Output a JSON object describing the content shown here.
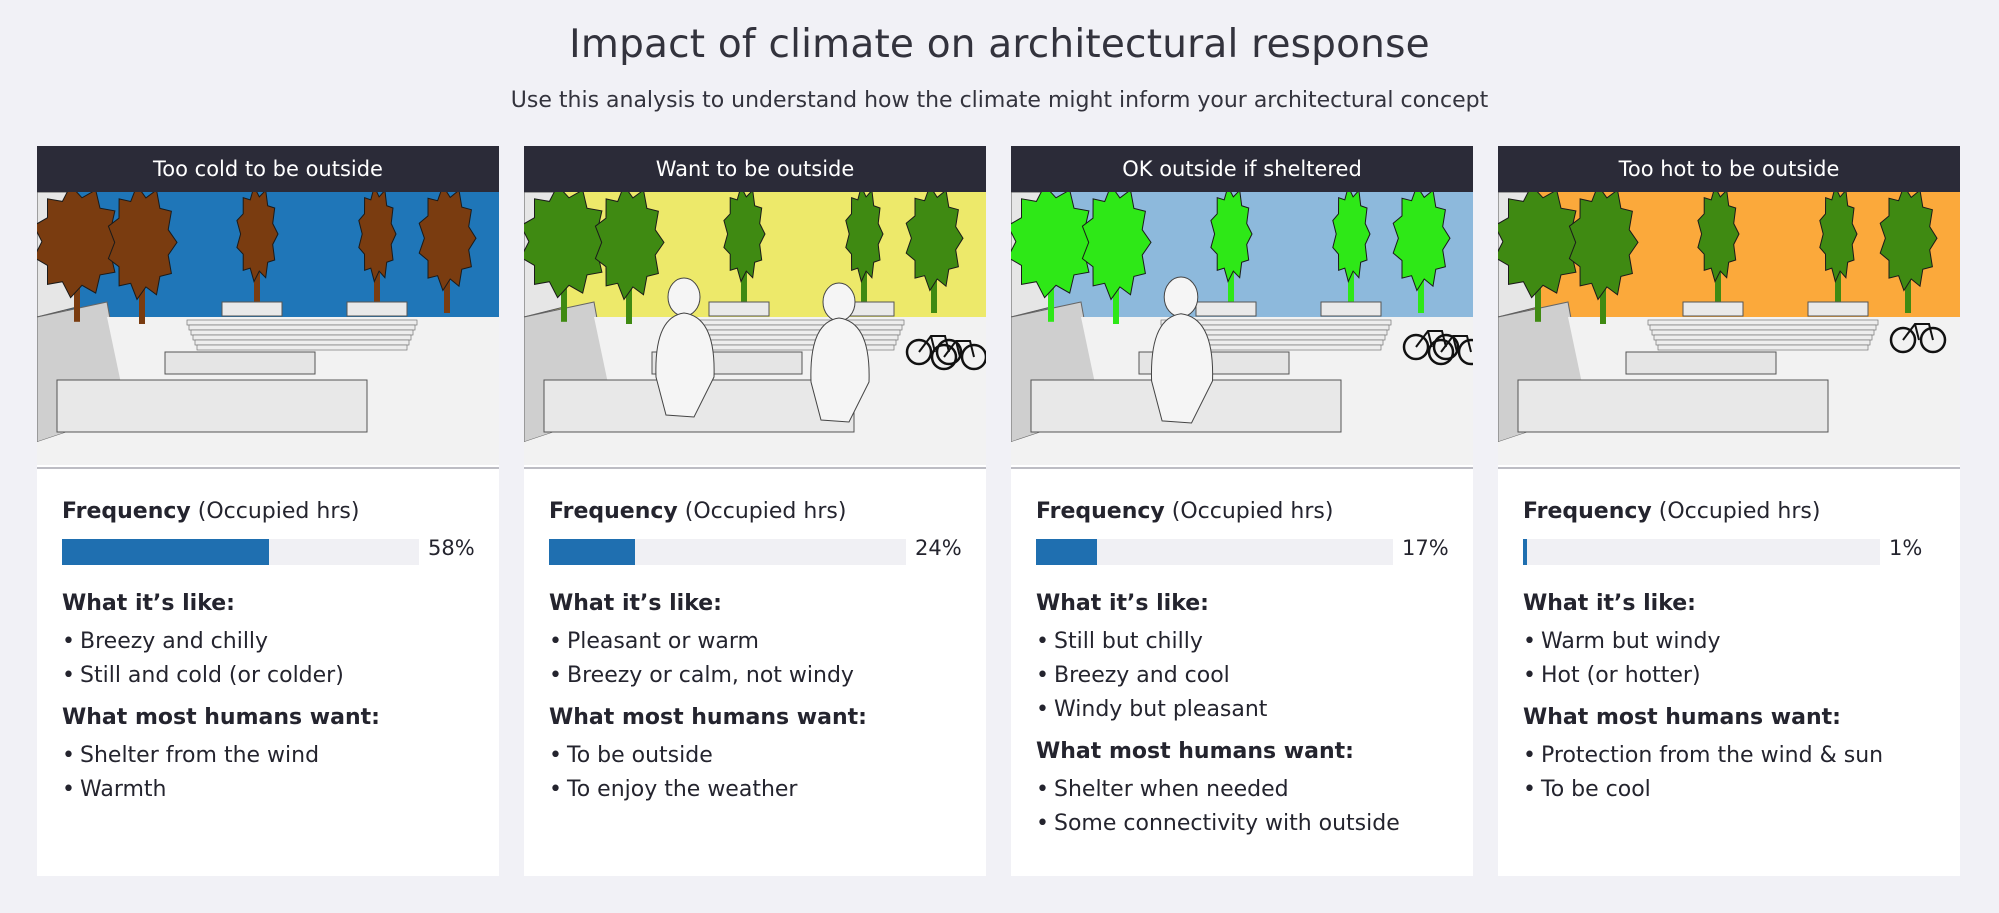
{
  "header": {
    "title": "Impact of climate on architectural response",
    "subtitle": "Use this analysis to understand how the climate might inform your architectural concept"
  },
  "frequency_label": {
    "bold": "Frequency",
    "rest": " (Occupied hrs)"
  },
  "like_heading": "What it’s like:",
  "want_heading": "What most humans want:",
  "cards": [
    {
      "title": "Too cold to be outside",
      "sky_color": "#1f76b8",
      "tree_color": "#7a3c10",
      "frequency_pct": "58%",
      "frequency_value": 0.58,
      "like": [
        "Breezy and chilly",
        "Still and cold (or colder)"
      ],
      "want": [
        "Shelter from the wind",
        "Warmth"
      ]
    },
    {
      "title": "Want to be outside",
      "sky_color": "#ede96a",
      "tree_color": "#3f8a12",
      "frequency_pct": "24%",
      "frequency_value": 0.24,
      "like": [
        "Pleasant or warm",
        "Breezy or calm, not windy"
      ],
      "want": [
        "To be outside",
        "To enjoy the weather"
      ]
    },
    {
      "title": "OK outside if sheltered",
      "sky_color": "#8db9dc",
      "tree_color": "#2ee817",
      "frequency_pct": "17%",
      "frequency_value": 0.17,
      "like": [
        "Still but chilly",
        "Breezy and cool",
        "Windy but pleasant"
      ],
      "want": [
        "Shelter when needed",
        "Some connectivity with outside"
      ]
    },
    {
      "title": "Too hot to be outside",
      "sky_color": "#fba93b",
      "tree_color": "#3f8a12",
      "frequency_pct": "1%",
      "frequency_value": 0.01,
      "like": [
        "Warm but windy",
        "Hot (or hotter)"
      ],
      "want": [
        "Protection from the wind & sun",
        "To be cool"
      ]
    }
  ]
}
